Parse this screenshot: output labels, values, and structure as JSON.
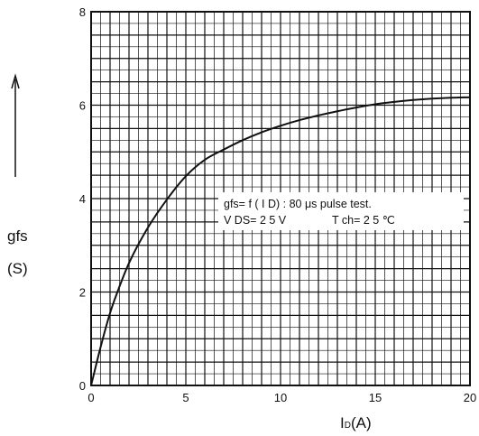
{
  "chart_data": {
    "type": "line",
    "title": "",
    "ylabel": "gfs",
    "ylabel_unit": "(S)",
    "xlabel_main": "I",
    "xlabel_sub": "D",
    "xlabel_unit": "(A)",
    "xlim": [
      0,
      20
    ],
    "ylim": [
      0,
      8
    ],
    "x_ticks": [
      "0",
      "5",
      "10",
      "15",
      "20"
    ],
    "y_ticks": [
      "0",
      "2",
      "4",
      "6",
      "8"
    ],
    "grid": true,
    "annotation": {
      "line1": "gfs= f ( I D) : 80 μs pulse test.",
      "line2_left": "V DS= 2 5 V",
      "line2_right": "T ch= 2 5 ℃"
    },
    "series": [
      {
        "values_x": [
          0,
          0.5,
          1,
          1.5,
          2,
          3,
          4,
          5,
          6,
          7,
          8,
          9,
          10,
          11,
          12,
          13,
          14,
          15,
          16,
          17,
          18,
          19,
          20
        ],
        "values_y": [
          0,
          0.82,
          1.55,
          2.12,
          2.62,
          3.38,
          3.98,
          4.48,
          4.83,
          5.05,
          5.25,
          5.42,
          5.56,
          5.68,
          5.78,
          5.87,
          5.95,
          6.02,
          6.07,
          6.11,
          6.14,
          6.16,
          6.17
        ]
      }
    ]
  }
}
